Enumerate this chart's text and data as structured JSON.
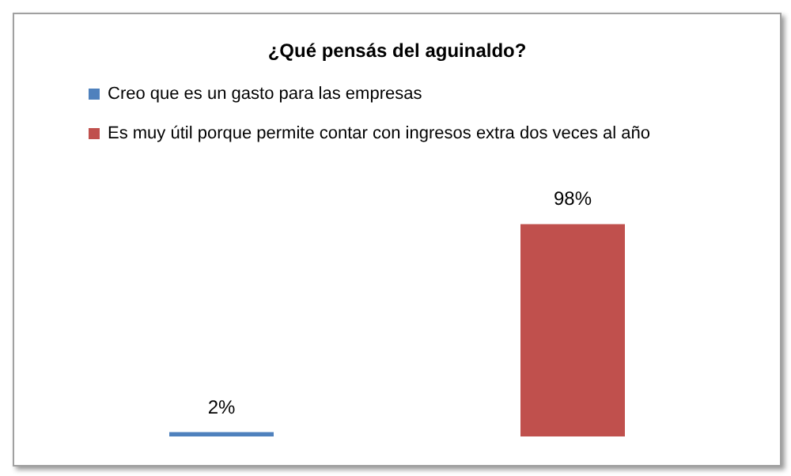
{
  "chart_data": {
    "type": "bar",
    "title": "¿Qué pensás del aguinaldo?",
    "categories": [
      null,
      null
    ],
    "series": [
      {
        "name": "Creo que es un gasto para las empresas",
        "color": "#4f81bd",
        "values": [
          2,
          null
        ],
        "value_labels": [
          "2%",
          null
        ]
      },
      {
        "name": "Es muy útil porque permite contar con ingresos extra dos veces al año",
        "color": "#c0504d",
        "values": [
          null,
          98
        ],
        "value_labels": [
          null,
          "98%"
        ]
      }
    ],
    "legend": "top left",
    "stacked": true
  }
}
